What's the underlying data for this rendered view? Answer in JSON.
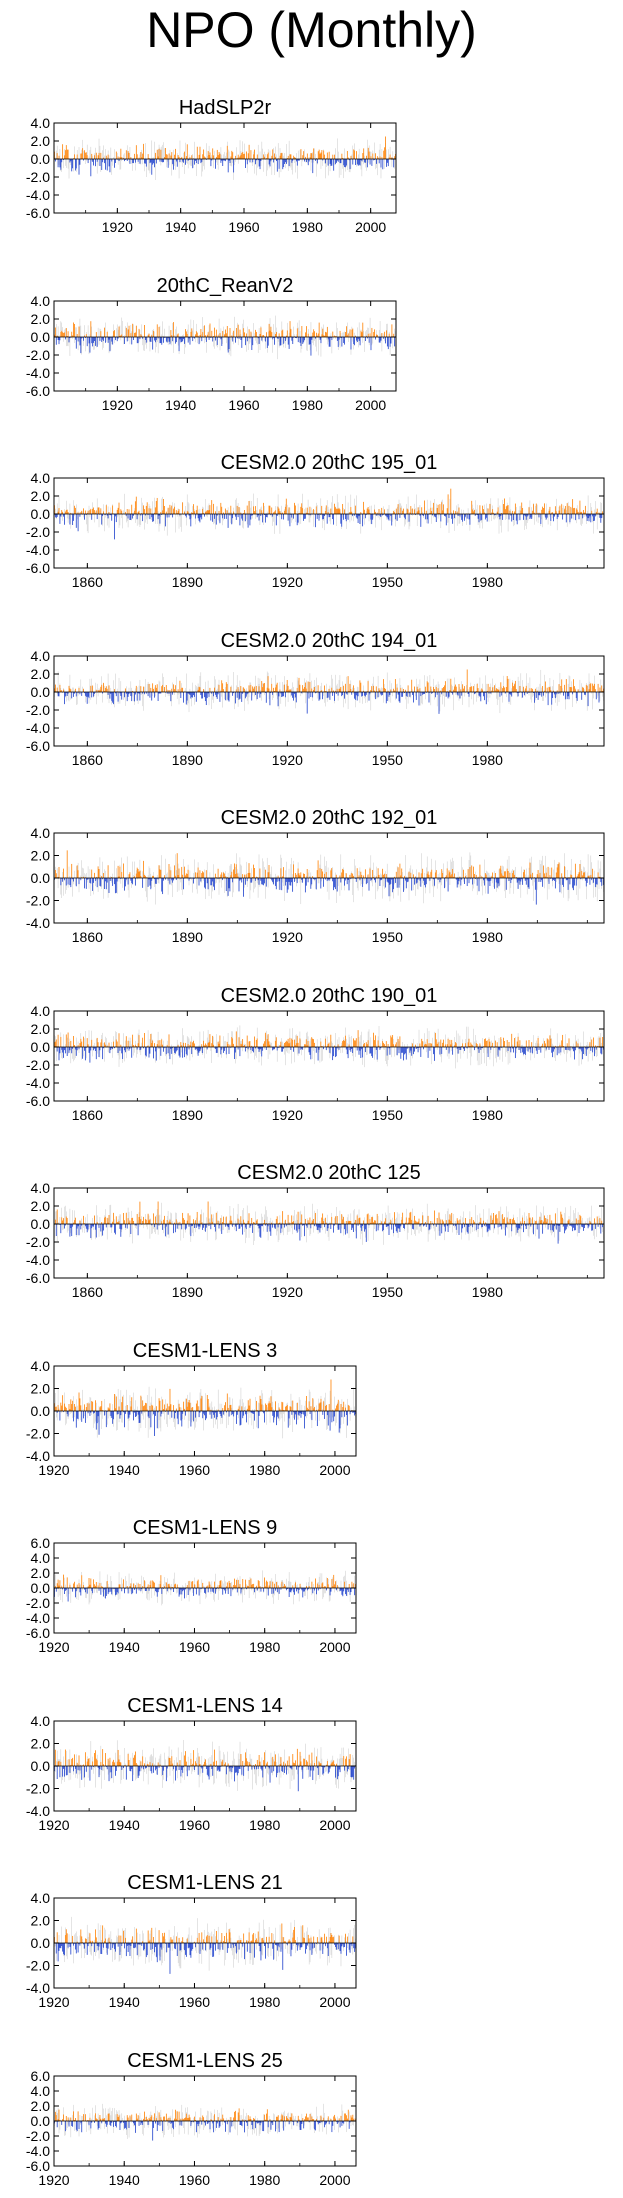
{
  "page": {
    "title": "NPO (Monthly)"
  },
  "colors": {
    "positive": "#ff8000",
    "negative": "#1c3fcc",
    "trace": "#c8c8c8",
    "axis": "#000000"
  },
  "chart_data": [
    {
      "type": "bar",
      "title": "HadSLP2r",
      "xlim": [
        1900,
        2008
      ],
      "ylim": [
        -6,
        4
      ],
      "yticks": [
        4.0,
        2.0,
        0.0,
        -2.0,
        -4.0,
        -6.0
      ],
      "ytick_labels": [
        "4.0",
        "2.0",
        "0.0",
        "-2.0",
        "-4.0",
        "-6.0"
      ],
      "xticks": [
        1920,
        1940,
        1960,
        1980,
        2000
      ],
      "xtick_labels": [
        "1920",
        "1940",
        "1960",
        "1980",
        "2000"
      ],
      "values_summary": {
        "start_year": 1900,
        "end_year": 2008,
        "typical_max": 2.5,
        "typical_min": -3.5
      }
    },
    {
      "type": "bar",
      "title": "20thC_ReanV2",
      "xlim": [
        1900,
        2008
      ],
      "ylim": [
        -6,
        4
      ],
      "yticks": [
        4.0,
        2.0,
        0.0,
        -2.0,
        -4.0,
        -6.0
      ],
      "ytick_labels": [
        "4.0",
        "2.0",
        "0.0",
        "-2.0",
        "-4.0",
        "-6.0"
      ],
      "xticks": [
        1920,
        1940,
        1960,
        1980,
        2000
      ],
      "xtick_labels": [
        "1920",
        "1940",
        "1960",
        "1980",
        "2000"
      ],
      "values_summary": {
        "start_year": 1900,
        "end_year": 2008,
        "typical_max": 2.5,
        "typical_min": -3.0
      }
    },
    {
      "type": "bar",
      "title": "CESM2.0 20thC 195_01",
      "xlim": [
        1850,
        2015
      ],
      "ylim": [
        -6,
        4
      ],
      "yticks": [
        4.0,
        2.0,
        0.0,
        -2.0,
        -4.0,
        -6.0
      ],
      "ytick_labels": [
        "4.0",
        "2.0",
        "0.0",
        "-2.0",
        "-4.0",
        "-6.0"
      ],
      "xticks": [
        1860,
        1890,
        1920,
        1950,
        1980
      ],
      "xtick_labels": [
        "1860",
        "1890",
        "1920",
        "1950",
        "1980"
      ],
      "values_summary": {
        "start_year": 1850,
        "end_year": 2015,
        "typical_max": 3.0,
        "typical_min": -3.0
      }
    },
    {
      "type": "bar",
      "title": "CESM2.0 20thC 194_01",
      "xlim": [
        1850,
        2015
      ],
      "ylim": [
        -6,
        4
      ],
      "yticks": [
        4.0,
        2.0,
        0.0,
        -2.0,
        -4.0,
        -6.0
      ],
      "ytick_labels": [
        "4.0",
        "2.0",
        "0.0",
        "-2.0",
        "-4.0",
        "-6.0"
      ],
      "xticks": [
        1860,
        1890,
        1920,
        1950,
        1980
      ],
      "xtick_labels": [
        "1860",
        "1890",
        "1920",
        "1950",
        "1980"
      ],
      "values_summary": {
        "start_year": 1850,
        "end_year": 2015,
        "typical_max": 2.5,
        "typical_min": -3.0
      }
    },
    {
      "type": "bar",
      "title": "CESM2.0 20thC 192_01",
      "xlim": [
        1850,
        2015
      ],
      "ylim": [
        -4,
        4
      ],
      "yticks": [
        4.0,
        2.0,
        0.0,
        -2.0,
        -4.0
      ],
      "ytick_labels": [
        "4.0",
        "2.0",
        "0.0",
        "-2.0",
        "-4.0"
      ],
      "xticks": [
        1860,
        1890,
        1920,
        1950,
        1980
      ],
      "xtick_labels": [
        "1860",
        "1890",
        "1920",
        "1950",
        "1980"
      ],
      "values_summary": {
        "start_year": 1850,
        "end_year": 2015,
        "typical_max": 3.0,
        "typical_min": -3.0
      }
    },
    {
      "type": "bar",
      "title": "CESM2.0 20thC 190_01",
      "xlim": [
        1850,
        2015
      ],
      "ylim": [
        -6,
        4
      ],
      "yticks": [
        4.0,
        2.0,
        0.0,
        -2.0,
        -4.0,
        -6.0
      ],
      "ytick_labels": [
        "4.0",
        "2.0",
        "0.0",
        "-2.0",
        "-4.0",
        "-6.0"
      ],
      "xticks": [
        1860,
        1890,
        1920,
        1950,
        1980
      ],
      "xtick_labels": [
        "1860",
        "1890",
        "1920",
        "1950",
        "1980"
      ],
      "values_summary": {
        "start_year": 1850,
        "end_year": 2015,
        "typical_max": 2.5,
        "typical_min": -3.5
      }
    },
    {
      "type": "bar",
      "title": "CESM2.0 20thC 125",
      "xlim": [
        1850,
        2015
      ],
      "ylim": [
        -6,
        4
      ],
      "yticks": [
        4.0,
        2.0,
        0.0,
        -2.0,
        -4.0,
        -6.0
      ],
      "ytick_labels": [
        "4.0",
        "2.0",
        "0.0",
        "-2.0",
        "-4.0",
        "-6.0"
      ],
      "xticks": [
        1860,
        1890,
        1920,
        1950,
        1980
      ],
      "xtick_labels": [
        "1860",
        "1890",
        "1920",
        "1950",
        "1980"
      ],
      "values_summary": {
        "start_year": 1850,
        "end_year": 2015,
        "typical_max": 2.5,
        "typical_min": -3.5
      }
    },
    {
      "type": "bar",
      "title": "CESM1-LENS 3",
      "xlim": [
        1920,
        2006
      ],
      "ylim": [
        -4,
        4
      ],
      "yticks": [
        4.0,
        2.0,
        0.0,
        -2.0,
        -4.0
      ],
      "ytick_labels": [
        "4.0",
        "2.0",
        "0.0",
        "-2.0",
        "-4.0"
      ],
      "xticks": [
        1920,
        1940,
        1960,
        1980,
        2000
      ],
      "xtick_labels": [
        "1920",
        "1940",
        "1960",
        "1980",
        "2000"
      ],
      "values_summary": {
        "start_year": 1920,
        "end_year": 2006,
        "typical_max": 2.8,
        "typical_min": -2.8
      }
    },
    {
      "type": "bar",
      "title": "CESM1-LENS 9",
      "xlim": [
        1920,
        2006
      ],
      "ylim": [
        -6,
        6
      ],
      "yticks": [
        6.0,
        4.0,
        2.0,
        0.0,
        -2.0,
        -4.0,
        -6.0
      ],
      "ytick_labels": [
        "6.0",
        "4.0",
        "2.0",
        "0.0",
        "-2.0",
        "-4.0",
        "-6.0"
      ],
      "xticks": [
        1920,
        1940,
        1960,
        1980,
        2000
      ],
      "xtick_labels": [
        "1920",
        "1940",
        "1960",
        "1980",
        "2000"
      ],
      "values_summary": {
        "start_year": 1920,
        "end_year": 2006,
        "typical_max": 2.5,
        "typical_min": -3.0
      }
    },
    {
      "type": "bar",
      "title": "CESM1-LENS 14",
      "xlim": [
        1920,
        2006
      ],
      "ylim": [
        -4,
        4
      ],
      "yticks": [
        4.0,
        2.0,
        0.0,
        -2.0,
        -4.0
      ],
      "ytick_labels": [
        "4.0",
        "2.0",
        "0.0",
        "-2.0",
        "-4.0"
      ],
      "xticks": [
        1920,
        1940,
        1960,
        1980,
        2000
      ],
      "xtick_labels": [
        "1920",
        "1940",
        "1960",
        "1980",
        "2000"
      ],
      "values_summary": {
        "start_year": 1920,
        "end_year": 2006,
        "typical_max": 3.2,
        "typical_min": -2.8
      }
    },
    {
      "type": "bar",
      "title": "CESM1-LENS 21",
      "xlim": [
        1920,
        2006
      ],
      "ylim": [
        -4,
        4
      ],
      "yticks": [
        4.0,
        2.0,
        0.0,
        -2.0,
        -4.0
      ],
      "ytick_labels": [
        "4.0",
        "2.0",
        "0.0",
        "-2.0",
        "-4.0"
      ],
      "xticks": [
        1920,
        1940,
        1960,
        1980,
        2000
      ],
      "xtick_labels": [
        "1920",
        "1940",
        "1960",
        "1980",
        "2000"
      ],
      "values_summary": {
        "start_year": 1920,
        "end_year": 2006,
        "typical_max": 2.8,
        "typical_min": -2.8
      }
    },
    {
      "type": "bar",
      "title": "CESM1-LENS 25",
      "xlim": [
        1920,
        2006
      ],
      "ylim": [
        -6,
        6
      ],
      "yticks": [
        6.0,
        4.0,
        2.0,
        0.0,
        -2.0,
        -4.0,
        -6.0
      ],
      "ytick_labels": [
        "6.0",
        "4.0",
        "2.0",
        "0.0",
        "-2.0",
        "-4.0",
        "-6.0"
      ],
      "xticks": [
        1920,
        1940,
        1960,
        1980,
        2000
      ],
      "xtick_labels": [
        "1920",
        "1940",
        "1960",
        "1980",
        "2000"
      ],
      "values_summary": {
        "start_year": 1920,
        "end_year": 2006,
        "typical_max": 3.5,
        "typical_min": -3.0
      }
    }
  ]
}
